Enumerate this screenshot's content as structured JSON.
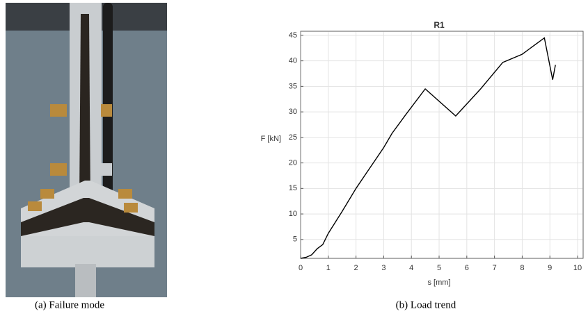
{
  "figure": {
    "panels": [
      {
        "caption": "(a) Failure mode"
      },
      {
        "caption": "(b) Load trend"
      }
    ]
  },
  "chart_data": {
    "type": "line",
    "title": "R1",
    "x_label": "s [mm]",
    "y_label": "F [kN]",
    "x": [
      0,
      0.2,
      0.4,
      0.6,
      0.8,
      1.0,
      1.5,
      2.0,
      2.5,
      3.0,
      3.3,
      3.8,
      4.5,
      5.6,
      6.5,
      7.3,
      8.0,
      8.8,
      9.1,
      9.2
    ],
    "values": [
      1.3,
      1.5,
      2.0,
      3.2,
      4.0,
      6.2,
      10.5,
      15.0,
      19.0,
      23.0,
      25.8,
      29.5,
      34.5,
      29.2,
      34.5,
      39.7,
      41.3,
      44.5,
      36.3,
      39.2
    ],
    "color": "#000000",
    "xlim": [
      0,
      10.2
    ],
    "xticks": [
      0,
      1,
      2,
      3,
      4,
      5,
      6,
      7,
      8,
      9,
      10
    ],
    "ylim": [
      1.3,
      45.8
    ],
    "yticks": [
      5,
      10,
      15,
      20,
      25,
      30,
      35,
      40,
      45
    ],
    "grid": true
  }
}
